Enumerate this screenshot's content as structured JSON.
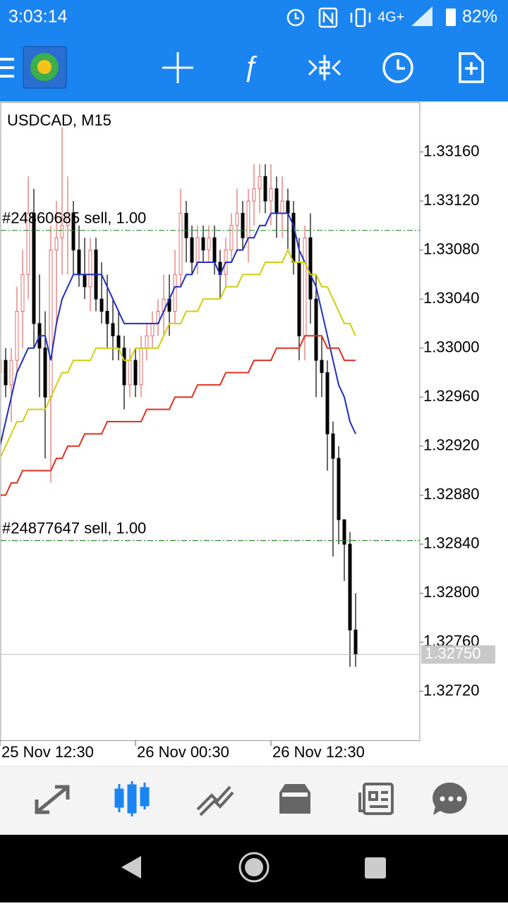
{
  "status_bar": {
    "time": "3:03:14",
    "network": "4G+",
    "battery": "82%"
  },
  "chart_data": {
    "type": "candlestick",
    "title": "USDCAD, M15",
    "categories": [
      "25 Nov 12:30",
      null,
      null,
      null,
      null,
      null,
      null,
      null,
      null,
      null,
      null,
      null,
      null,
      null,
      null,
      null,
      null,
      null,
      null,
      null,
      null,
      null,
      null,
      null,
      "26 Nov 00:30",
      null,
      null,
      null,
      null,
      null,
      null,
      null,
      null,
      null,
      null,
      null,
      null,
      null,
      null,
      null,
      null,
      null,
      null,
      null,
      null,
      null,
      null,
      null,
      "26 Nov 12:30",
      null,
      null,
      null,
      null,
      null,
      null,
      null,
      null,
      null,
      null,
      null,
      null,
      null,
      null,
      null
    ],
    "open": [
      1.3298,
      1.3299,
      1.3297,
      1.3299,
      1.3303,
      1.3306,
      1.3311,
      1.3302,
      1.33,
      1.3296,
      1.3308,
      1.3309,
      1.331,
      1.3311,
      1.3308,
      1.3306,
      1.3305,
      1.3308,
      1.3304,
      1.3303,
      1.3302,
      1.3301,
      1.33,
      1.3297,
      1.3299,
      1.3297,
      1.33,
      1.3301,
      1.3302,
      1.3303,
      1.3304,
      1.3303,
      1.3306,
      1.3311,
      1.3309,
      1.3307,
      1.3309,
      1.3308,
      1.3309,
      1.3307,
      1.3306,
      1.3308,
      1.331,
      1.3311,
      1.3309,
      1.3312,
      1.3313,
      1.3314,
      1.3312,
      1.3313,
      1.3311,
      1.3312,
      1.3311,
      1.3307,
      1.3301,
      1.3309,
      1.3304,
      1.3299,
      1.3298,
      1.3293,
      1.3291,
      1.3286,
      1.3284,
      1.3277
    ],
    "high": [
      1.3301,
      1.33,
      1.33,
      1.3305,
      1.3308,
      1.3314,
      1.3313,
      1.3306,
      1.3303,
      1.331,
      1.3312,
      1.3318,
      1.3314,
      1.3312,
      1.331,
      1.3309,
      1.3309,
      1.3309,
      1.3307,
      1.3306,
      1.3304,
      1.3303,
      1.3301,
      1.33,
      1.33,
      1.3301,
      1.3302,
      1.3303,
      1.3304,
      1.3306,
      1.3306,
      1.3308,
      1.3313,
      1.3312,
      1.331,
      1.331,
      1.331,
      1.331,
      1.331,
      1.3308,
      1.3309,
      1.3311,
      1.3313,
      1.3312,
      1.3313,
      1.3315,
      1.3315,
      1.3315,
      1.3315,
      1.3314,
      1.3314,
      1.3313,
      1.3312,
      1.3309,
      1.331,
      1.3311,
      1.3306,
      1.3301,
      1.3299,
      1.3294,
      1.3292,
      1.3286,
      1.3285,
      1.328
    ],
    "low": [
      1.3295,
      1.3296,
      1.3294,
      1.3298,
      1.33,
      1.3304,
      1.33,
      1.3296,
      1.3291,
      1.3289,
      1.3302,
      1.3306,
      1.3306,
      1.3306,
      1.3305,
      1.3304,
      1.3303,
      1.3303,
      1.3302,
      1.33,
      1.3299,
      1.3299,
      1.3295,
      1.3296,
      1.3296,
      1.3296,
      1.3299,
      1.33,
      1.3301,
      1.3301,
      1.3301,
      1.3302,
      1.3305,
      1.3307,
      1.3306,
      1.3306,
      1.3307,
      1.3307,
      1.3306,
      1.3304,
      1.3305,
      1.3307,
      1.3308,
      1.3308,
      1.3307,
      1.331,
      1.3311,
      1.3311,
      1.331,
      1.3309,
      1.3309,
      1.3308,
      1.3306,
      1.3299,
      1.3299,
      1.3302,
      1.3296,
      1.3296,
      1.329,
      1.3283,
      1.3284,
      1.3281,
      1.3274,
      1.3274
    ],
    "close": [
      1.3299,
      1.3297,
      1.3299,
      1.3303,
      1.3306,
      1.3311,
      1.3302,
      1.33,
      1.3296,
      1.3308,
      1.3309,
      1.331,
      1.3311,
      1.3308,
      1.3306,
      1.3305,
      1.3308,
      1.3304,
      1.3303,
      1.3302,
      1.3301,
      1.33,
      1.3297,
      1.3299,
      1.3297,
      1.33,
      1.3301,
      1.3302,
      1.3303,
      1.3304,
      1.3303,
      1.3306,
      1.3311,
      1.3309,
      1.3307,
      1.3309,
      1.3308,
      1.3309,
      1.3307,
      1.3306,
      1.3308,
      1.331,
      1.3311,
      1.3309,
      1.3312,
      1.3313,
      1.3314,
      1.3312,
      1.3313,
      1.3311,
      1.3312,
      1.3311,
      1.3307,
      1.3301,
      1.3309,
      1.3304,
      1.3299,
      1.3298,
      1.3293,
      1.3291,
      1.3286,
      1.3284,
      1.3277,
      1.3275
    ],
    "bull_color": "#e06b6b",
    "bear_color": "#000000",
    "series": [
      {
        "color": "#1f2fbf",
        "values": [
          1.3292,
          1.3294,
          1.3296,
          1.3298,
          1.3299,
          1.33,
          1.33,
          1.3301,
          1.3301,
          1.3299,
          1.3302,
          1.3304,
          1.3305,
          1.3306,
          1.3306,
          1.3306,
          1.3306,
          1.3306,
          1.3306,
          1.3305,
          1.3304,
          1.3303,
          1.3302,
          1.3302,
          1.3302,
          1.3302,
          1.3302,
          1.3302,
          1.3302,
          1.3303,
          1.3304,
          1.3305,
          1.3305,
          1.3306,
          1.3306,
          1.3307,
          1.3307,
          1.3307,
          1.3307,
          1.3306,
          1.3307,
          1.3307,
          1.3308,
          1.3308,
          1.3309,
          1.3309,
          1.331,
          1.331,
          1.3311,
          1.3311,
          1.3311,
          1.3311,
          1.331,
          1.3308,
          1.3307,
          1.3306,
          1.3305,
          1.3303,
          1.3301,
          1.3299,
          1.3297,
          1.3296,
          1.3294,
          1.3293
        ]
      },
      {
        "color": "#cfcf10",
        "values": [
          1.3291,
          1.3292,
          1.3293,
          1.3294,
          1.3294,
          1.3295,
          1.3295,
          1.3295,
          1.3295,
          1.3296,
          1.3297,
          1.3298,
          1.3298,
          1.3299,
          1.3299,
          1.3299,
          1.3299,
          1.33,
          1.33,
          1.33,
          1.33,
          1.33,
          1.3299,
          1.3299,
          1.33,
          1.33,
          1.33,
          1.33,
          1.33,
          1.3301,
          1.3302,
          1.3302,
          1.3302,
          1.3303,
          1.3303,
          1.3303,
          1.3304,
          1.3304,
          1.3304,
          1.3304,
          1.3305,
          1.3305,
          1.3305,
          1.3306,
          1.3306,
          1.3306,
          1.3306,
          1.3307,
          1.3307,
          1.3307,
          1.3307,
          1.3308,
          1.3307,
          1.3307,
          1.3307,
          1.3306,
          1.3306,
          1.3305,
          1.3305,
          1.3304,
          1.3303,
          1.3302,
          1.3302,
          1.3301
        ]
      },
      {
        "color": "#e0301e",
        "values": [
          1.3288,
          1.3288,
          1.3289,
          1.3289,
          1.329,
          1.329,
          1.329,
          1.329,
          1.329,
          1.329,
          1.3291,
          1.3291,
          1.3292,
          1.3292,
          1.3292,
          1.3293,
          1.3293,
          1.3293,
          1.3293,
          1.3294,
          1.3294,
          1.3294,
          1.3294,
          1.3294,
          1.3294,
          1.3294,
          1.3295,
          1.3295,
          1.3295,
          1.3295,
          1.3295,
          1.3296,
          1.3296,
          1.3296,
          1.3296,
          1.3297,
          1.3297,
          1.3297,
          1.3297,
          1.3297,
          1.3298,
          1.3298,
          1.3298,
          1.3298,
          1.3298,
          1.3299,
          1.3299,
          1.3299,
          1.3299,
          1.33,
          1.33,
          1.33,
          1.33,
          1.33,
          1.3301,
          1.3301,
          1.3301,
          1.3301,
          1.33,
          1.33,
          1.33,
          1.3299,
          1.3299,
          1.3299
        ]
      }
    ],
    "ylim": [
      1.3268,
      1.332
    ],
    "yticks": [
      {
        "value": 1.3272,
        "label": "1.32720"
      },
      {
        "value": 1.3276,
        "label": "1.32760"
      },
      {
        "value": 1.328,
        "label": "1.32800"
      },
      {
        "value": 1.3284,
        "label": "1.32840"
      },
      {
        "value": 1.3288,
        "label": "1.32880"
      },
      {
        "value": 1.3292,
        "label": "1.32920"
      },
      {
        "value": 1.3296,
        "label": "1.32960"
      },
      {
        "value": 1.33,
        "label": "1.33000"
      },
      {
        "value": 1.3304,
        "label": "1.33040"
      },
      {
        "value": 1.3308,
        "label": "1.33080"
      },
      {
        "value": 1.3312,
        "label": "1.33120"
      },
      {
        "value": 1.3316,
        "label": "1.33160"
      }
    ],
    "order_lines": [
      {
        "label": "#24860685 sell, 1.00",
        "value": 1.33096
      },
      {
        "label": "#24877647 sell, 1.00",
        "value": 1.32843
      }
    ],
    "current_price": {
      "value": 1.3275,
      "label": "1.32750"
    }
  }
}
